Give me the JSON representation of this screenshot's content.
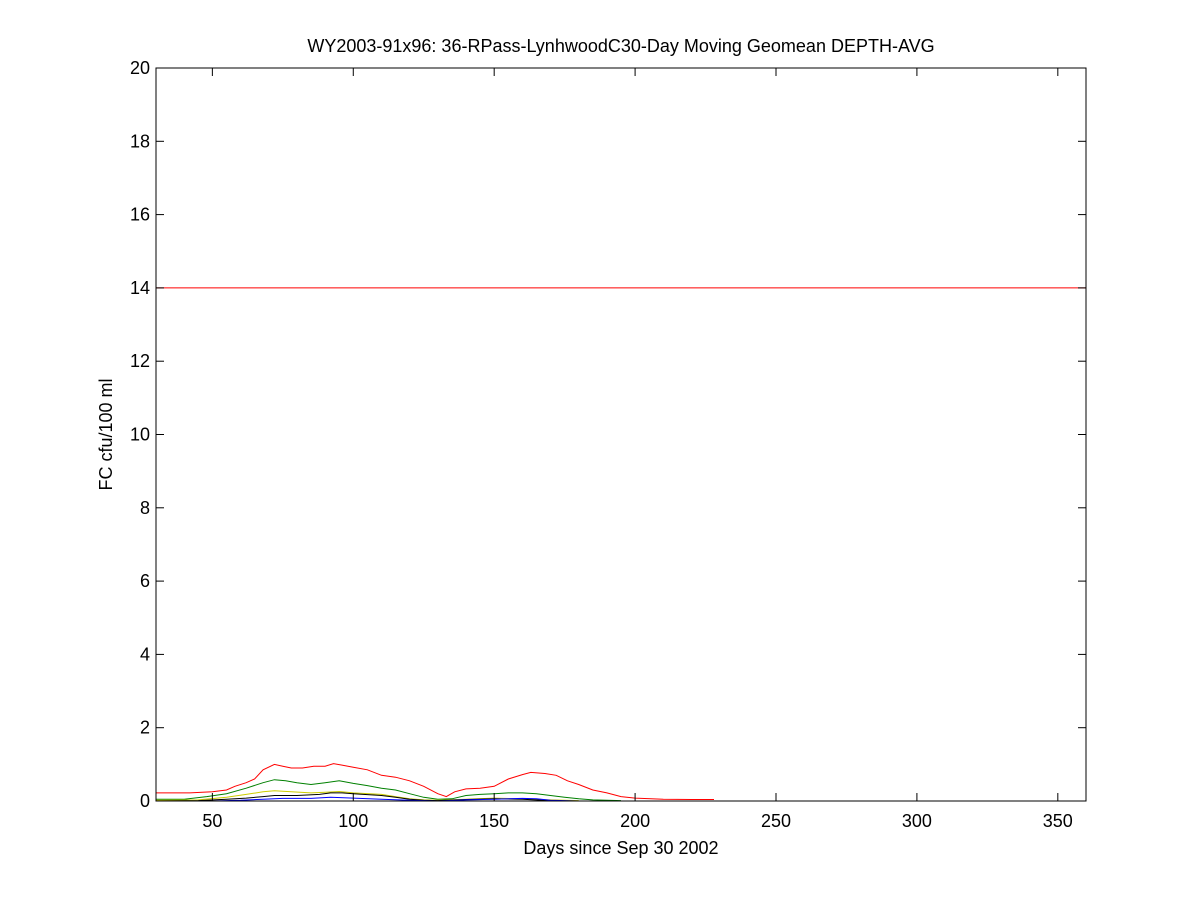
{
  "chart_data": {
    "type": "line",
    "title": "WY2003-91x96: 36-RPass-LynhwoodC30-Day Moving Geomean DEPTH-AVG",
    "xlabel": "Days since Sep 30 2002",
    "ylabel": "FC cfu/100 ml",
    "xlim": [
      30,
      360
    ],
    "ylim": [
      0,
      20
    ],
    "xticks": [
      50,
      100,
      150,
      200,
      250,
      300,
      350
    ],
    "yticks": [
      0,
      2,
      4,
      6,
      8,
      10,
      12,
      14,
      16,
      18,
      20
    ],
    "grid": false,
    "reference_line": {
      "y": 14,
      "color": "#ff0000"
    },
    "series": [
      {
        "color": "#ff0000",
        "x": [
          30,
          42,
          50,
          55,
          58,
          62,
          65,
          68,
          72,
          75,
          78,
          82,
          86,
          90,
          93,
          96,
          100,
          105,
          110,
          115,
          120,
          125,
          130,
          133,
          136,
          140,
          145,
          150,
          155,
          160,
          163,
          168,
          172,
          176,
          180,
          185,
          190,
          195,
          200,
          210,
          220,
          228
        ],
        "y": [
          0.22,
          0.22,
          0.25,
          0.3,
          0.4,
          0.5,
          0.6,
          0.85,
          1.0,
          0.95,
          0.9,
          0.9,
          0.95,
          0.95,
          1.02,
          0.98,
          0.92,
          0.85,
          0.7,
          0.65,
          0.55,
          0.4,
          0.2,
          0.12,
          0.25,
          0.33,
          0.35,
          0.4,
          0.6,
          0.72,
          0.78,
          0.75,
          0.7,
          0.55,
          0.45,
          0.3,
          0.22,
          0.12,
          0.08,
          0.05,
          0.04,
          0.04
        ]
      },
      {
        "color": "#008000",
        "x": [
          30,
          40,
          48,
          55,
          62,
          68,
          72,
          76,
          80,
          85,
          90,
          95,
          100,
          105,
          110,
          115,
          120,
          125,
          130,
          135,
          140,
          145,
          150,
          155,
          160,
          165,
          170,
          175,
          180,
          185,
          190,
          195
        ],
        "y": [
          0.05,
          0.05,
          0.12,
          0.2,
          0.35,
          0.5,
          0.58,
          0.55,
          0.5,
          0.45,
          0.5,
          0.55,
          0.48,
          0.42,
          0.35,
          0.3,
          0.2,
          0.1,
          0.05,
          0.06,
          0.15,
          0.18,
          0.2,
          0.22,
          0.22,
          0.2,
          0.15,
          0.1,
          0.06,
          0.03,
          0.02,
          0.01
        ]
      },
      {
        "color": "#cccc00",
        "x": [
          30,
          45,
          55,
          62,
          68,
          72,
          78,
          85,
          90,
          95,
          100,
          110,
          115,
          120,
          125,
          130,
          140,
          150,
          160,
          170,
          180
        ],
        "y": [
          0.02,
          0.03,
          0.1,
          0.18,
          0.25,
          0.28,
          0.25,
          0.22,
          0.24,
          0.26,
          0.22,
          0.18,
          0.12,
          0.06,
          0.03,
          0.02,
          0.05,
          0.08,
          0.06,
          0.03,
          0.01
        ]
      },
      {
        "color": "#000000",
        "x": [
          30,
          45,
          55,
          62,
          68,
          72,
          80,
          88,
          92,
          96,
          100,
          110,
          115,
          120,
          125,
          130,
          140,
          150,
          160,
          170
        ],
        "y": [
          0.0,
          0.01,
          0.05,
          0.08,
          0.12,
          0.15,
          0.15,
          0.18,
          0.22,
          0.22,
          0.2,
          0.15,
          0.1,
          0.05,
          0.02,
          0.01,
          0.04,
          0.06,
          0.05,
          0.01
        ]
      },
      {
        "color": "#0000ff",
        "x": [
          30,
          50,
          60,
          68,
          75,
          85,
          92,
          100,
          110,
          120,
          130,
          140,
          150,
          160,
          165,
          170,
          180
        ],
        "y": [
          0.0,
          0.0,
          0.02,
          0.05,
          0.07,
          0.07,
          0.1,
          0.08,
          0.05,
          0.02,
          0.0,
          0.03,
          0.05,
          0.07,
          0.06,
          0.02,
          0.0
        ]
      }
    ]
  }
}
